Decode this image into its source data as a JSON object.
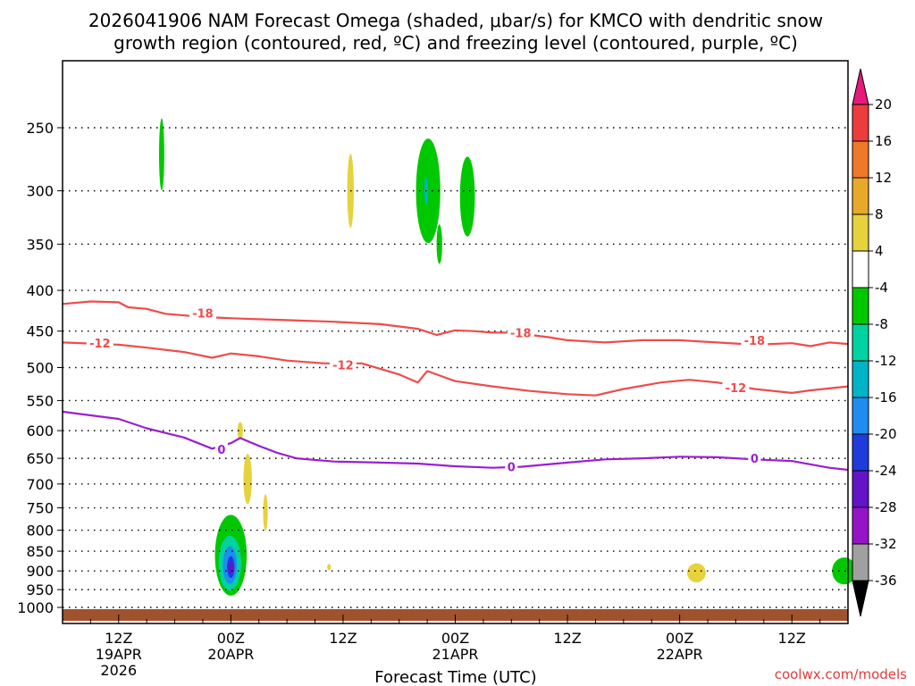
{
  "chart_data": {
    "type": "contour",
    "title_line1": "2026041906 NAM Forecast Omega (shaded, μbar/s) for KMCO with dendritic snow",
    "title_line2": "growth region (contoured, red, ºC) and freezing level (contoured, purple, ºC)",
    "xlabel": "Forecast Time (UTC)",
    "credit": "coolwx.com/models",
    "xlim": [
      6,
      90
    ],
    "ylim": [
      1040,
      200
    ],
    "y_ticks": [
      250,
      300,
      350,
      400,
      450,
      500,
      550,
      600,
      650,
      700,
      750,
      800,
      850,
      900,
      950,
      1000
    ],
    "x_ticks": [
      {
        "hour": 12,
        "lines": [
          "12Z",
          "19APR",
          "2026"
        ]
      },
      {
        "hour": 24,
        "lines": [
          "00Z",
          "20APR"
        ]
      },
      {
        "hour": 36,
        "lines": [
          "12Z"
        ]
      },
      {
        "hour": 48,
        "lines": [
          "00Z",
          "21APR"
        ]
      },
      {
        "hour": 60,
        "lines": [
          "12Z"
        ]
      },
      {
        "hour": 72,
        "lines": [
          "00Z",
          "22APR"
        ]
      },
      {
        "hour": 84,
        "lines": [
          "12Z"
        ]
      }
    ],
    "colorbar": {
      "labels": [
        "20",
        "16",
        "12",
        "8",
        "4",
        "-4",
        "-8",
        "-12",
        "-16",
        "-20",
        "-24",
        "-28",
        "-32",
        "-36"
      ],
      "colors": [
        "#ec3c3c",
        "#f07828",
        "#e8a828",
        "#e6d23c",
        "#ffffff",
        "#00c800",
        "#00d2a0",
        "#00b4c8",
        "#1e8cf0",
        "#1e3cdc",
        "#6414c8",
        "#9614c8",
        "#a0a0a0"
      ],
      "top_color": "#e6197d",
      "bottom_color": "#000000"
    },
    "contours": [
      {
        "name": "-18 C isotherm",
        "color": "#ef4b4b",
        "label": "-18",
        "points": [
          [
            6,
            416
          ],
          [
            9,
            413
          ],
          [
            12,
            414
          ],
          [
            13,
            420
          ],
          [
            15,
            422
          ],
          [
            17,
            428
          ],
          [
            21,
            432
          ],
          [
            25,
            434
          ],
          [
            30,
            436
          ],
          [
            35,
            438
          ],
          [
            40,
            441
          ],
          [
            44,
            447
          ],
          [
            46,
            455
          ],
          [
            48,
            449
          ],
          [
            50,
            450
          ],
          [
            52,
            452
          ],
          [
            54,
            452
          ],
          [
            56,
            455
          ],
          [
            58,
            458
          ],
          [
            60,
            462
          ],
          [
            64,
            465
          ],
          [
            68,
            462
          ],
          [
            72,
            462
          ],
          [
            76,
            465
          ],
          [
            80,
            468
          ],
          [
            84,
            466
          ],
          [
            86,
            470
          ],
          [
            88,
            465
          ],
          [
            90,
            467
          ]
        ],
        "label_at": [
          [
            21,
            427
          ],
          [
            55,
            452
          ],
          [
            80,
            462
          ]
        ]
      },
      {
        "name": "-12 C isotherm",
        "color": "#ef4b4b",
        "label": "-12",
        "points": [
          [
            6,
            465
          ],
          [
            12,
            468
          ],
          [
            15,
            472
          ],
          [
            19,
            478
          ],
          [
            22,
            486
          ],
          [
            24,
            480
          ],
          [
            27,
            484
          ],
          [
            30,
            490
          ],
          [
            34,
            494
          ],
          [
            38,
            494
          ],
          [
            42,
            510
          ],
          [
            44,
            522
          ],
          [
            45,
            505
          ],
          [
            48,
            520
          ],
          [
            52,
            528
          ],
          [
            56,
            535
          ],
          [
            60,
            540
          ],
          [
            63,
            542
          ],
          [
            66,
            532
          ],
          [
            70,
            522
          ],
          [
            73,
            518
          ],
          [
            76,
            522
          ],
          [
            80,
            532
          ],
          [
            84,
            538
          ],
          [
            86,
            534
          ],
          [
            90,
            528
          ]
        ],
        "label_at": [
          [
            10,
            466
          ],
          [
            36,
            496
          ],
          [
            78,
            530
          ]
        ]
      },
      {
        "name": "0 C freezing level",
        "color": "#9b1fd2",
        "label": "0",
        "points": [
          [
            6,
            568
          ],
          [
            8,
            572
          ],
          [
            12,
            580
          ],
          [
            15,
            596
          ],
          [
            17,
            604
          ],
          [
            19,
            612
          ],
          [
            22,
            632
          ],
          [
            24,
            622
          ],
          [
            25,
            613
          ],
          [
            27,
            627
          ],
          [
            29,
            640
          ],
          [
            31,
            650
          ],
          [
            35,
            656
          ],
          [
            40,
            658
          ],
          [
            44,
            660
          ],
          [
            48,
            665
          ],
          [
            52,
            668
          ],
          [
            55,
            666
          ],
          [
            60,
            658
          ],
          [
            64,
            652
          ],
          [
            68,
            650
          ],
          [
            72,
            647
          ],
          [
            76,
            648
          ],
          [
            80,
            652
          ],
          [
            84,
            655
          ],
          [
            88,
            668
          ],
          [
            90,
            672
          ]
        ],
        "label_at": [
          [
            23,
            633
          ],
          [
            54,
            666
          ],
          [
            80,
            650
          ]
        ]
      }
    ],
    "shaded_regions": [
      {
        "value": -8,
        "color": "#00c800",
        "center": [
          16.6,
          270
        ],
        "half_width": 0.28,
        "half_height": 28
      },
      {
        "value": 4,
        "color": "#e6d23c",
        "center": [
          36.8,
          300
        ],
        "half_width": 0.35,
        "half_height": 32
      },
      {
        "value": -8,
        "color": "#00c800",
        "center": [
          45.1,
          300
        ],
        "half_width": 1.3,
        "half_height": 45
      },
      {
        "value": -8,
        "color": "#00c800",
        "center": [
          46.3,
          350
        ],
        "half_width": 0.3,
        "half_height": 20
      },
      {
        "value": -8,
        "color": "#00c800",
        "center": [
          49.3,
          305
        ],
        "half_width": 0.8,
        "half_height": 35
      },
      {
        "value": -12,
        "color": "#00b4c8",
        "center": [
          44.9,
          300
        ],
        "half_width": 0.2,
        "half_height": 12
      },
      {
        "value": 4,
        "color": "#e6d23c",
        "center": [
          25.0,
          600
        ],
        "half_width": 0.3,
        "half_height": 15
      },
      {
        "value": 4,
        "color": "#e6d23c",
        "center": [
          25.8,
          690
        ],
        "half_width": 0.45,
        "half_height": 50
      },
      {
        "value": 4,
        "color": "#e6d23c",
        "center": [
          27.7,
          760
        ],
        "half_width": 0.25,
        "half_height": 40
      },
      {
        "value": 4,
        "color": "#e6d23c",
        "center": [
          34.5,
          890
        ],
        "half_width": 0.2,
        "half_height": 8
      },
      {
        "value": -8,
        "color": "#00c800",
        "center": [
          24.0,
          860
        ],
        "half_width": 1.7,
        "half_height": 100
      },
      {
        "value": -8,
        "color": "#00d2a0",
        "center": [
          23.9,
          880
        ],
        "half_width": 1.2,
        "half_height": 70
      },
      {
        "value": -16,
        "color": "#1e8cf0",
        "center": [
          23.9,
          885
        ],
        "half_width": 0.75,
        "half_height": 48
      },
      {
        "value": -20,
        "color": "#1e3cdc",
        "center": [
          24.0,
          890
        ],
        "half_width": 0.4,
        "half_height": 28
      },
      {
        "value": -28,
        "color": "#6414c8",
        "center": [
          24.0,
          892
        ],
        "half_width": 0.25,
        "half_height": 16
      },
      {
        "value": 4,
        "color": "#e6d23c",
        "center": [
          73.8,
          905
        ],
        "half_width": 1.0,
        "half_height": 25
      },
      {
        "value": -8,
        "color": "#00c800",
        "center": [
          89.6,
          900
        ],
        "half_width": 1.3,
        "half_height": 35
      }
    ]
  }
}
